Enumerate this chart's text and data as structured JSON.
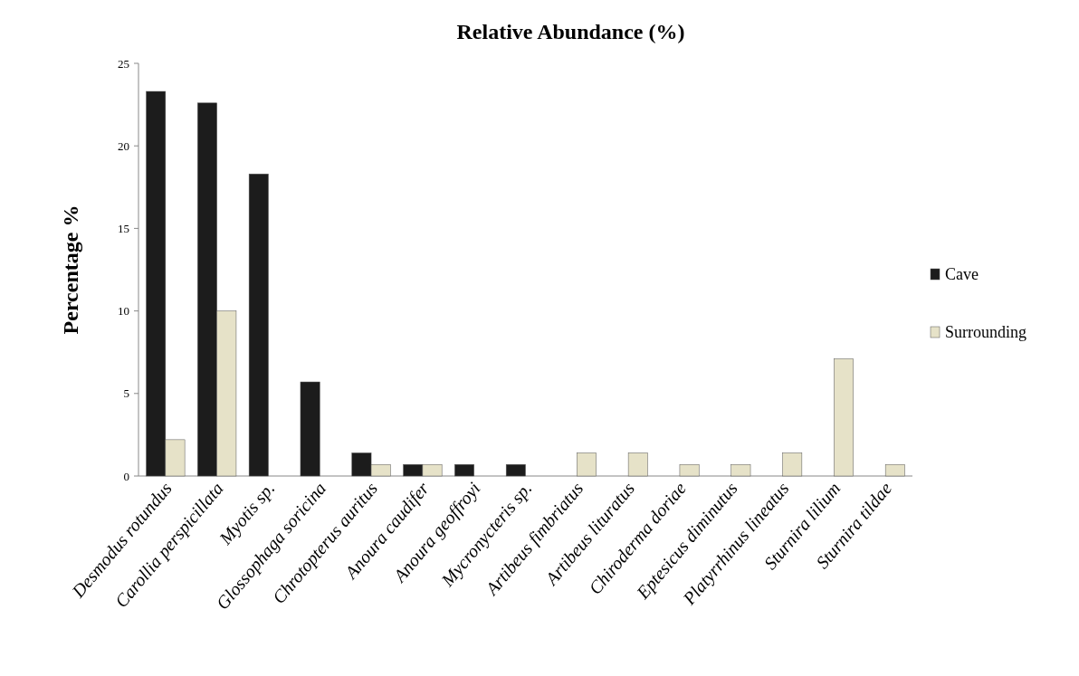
{
  "chart_data": {
    "type": "bar",
    "title": "Relative Abundance (%)",
    "ylabel": "Percentage %",
    "categories": [
      "Desmodus rotundus",
      "Carollia perspicillata",
      "Myotis sp.",
      "Glossophaga soricina",
      "Chrotopterus auritus",
      "Anoura caudifer",
      "Anoura geoffroyi",
      "Mycronycteris sp.",
      "Artibeus fimbriatus",
      "Artibeus lituratus",
      "Chiroderma doriae",
      "Eptesicus diminutus",
      "Platyrrhinus lineatus",
      "Sturnira lilium",
      "Sturnira tildae"
    ],
    "series": [
      {
        "name": "Cave",
        "color": "#1c1c1c",
        "values": [
          23.3,
          22.6,
          18.3,
          5.7,
          1.4,
          0.7,
          0.7,
          0.7,
          0,
          0,
          0,
          0,
          0,
          0,
          0
        ]
      },
      {
        "name": "Surrounding",
        "color": "#e6e2c8",
        "values": [
          2.2,
          10.0,
          0,
          0,
          0.7,
          0.7,
          0,
          0,
          1.4,
          1.4,
          0.7,
          0.7,
          1.4,
          7.1,
          0.7
        ]
      }
    ],
    "ylim": [
      0,
      25
    ],
    "yticks": [
      0,
      5,
      10,
      15,
      20,
      25
    ],
    "legend": "right"
  }
}
